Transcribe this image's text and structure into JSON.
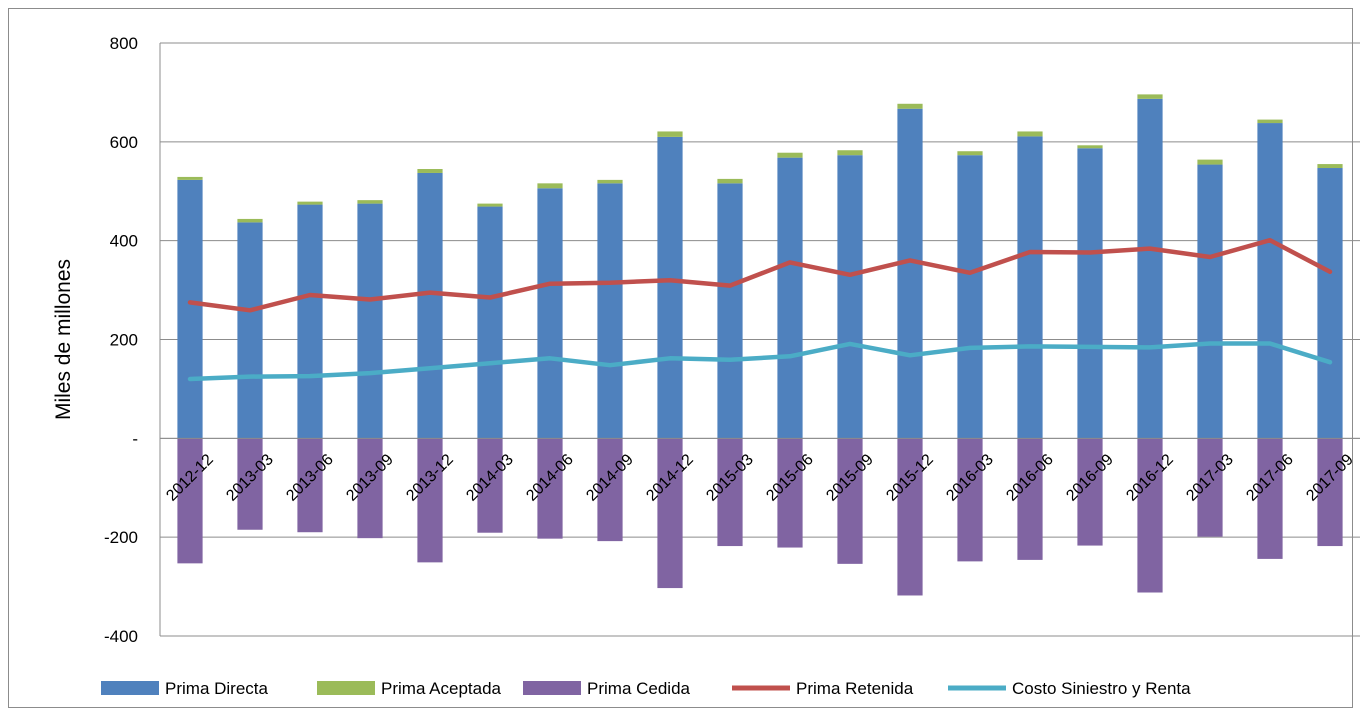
{
  "chart_data": {
    "type": "bar",
    "ylabel": "Miles de millones",
    "ylim": [
      -400,
      800
    ],
    "yticks": [
      {
        "value": 800,
        "label": "800"
      },
      {
        "value": 600,
        "label": "600"
      },
      {
        "value": 400,
        "label": "400"
      },
      {
        "value": 200,
        "label": "200"
      },
      {
        "value": 0,
        "label": "-"
      },
      {
        "value": -200,
        "label": "-200"
      },
      {
        "value": -400,
        "label": "-400"
      }
    ],
    "grid": true,
    "legend_position": "bottom",
    "categories": [
      "2012-12",
      "2013-03",
      "2013-06",
      "2013-09",
      "2013-12",
      "2014-03",
      "2014-06",
      "2014-09",
      "2014-12",
      "2015-03",
      "2015-06",
      "2015-09",
      "2015-12",
      "2016-03",
      "2016-06",
      "2016-09",
      "2016-12",
      "2017-03",
      "2017-06",
      "2017-09"
    ],
    "series": [
      {
        "name": "Prima Directa",
        "kind": "bar",
        "color": "#4F81BD",
        "values": [
          523,
          437,
          473,
          475,
          537,
          469,
          506,
          516,
          610,
          516,
          568,
          573,
          667,
          573,
          611,
          587,
          687,
          554,
          638,
          547
        ]
      },
      {
        "name": "Prima Aceptada",
        "kind": "bar",
        "color": "#9BBB59",
        "values": [
          6,
          7,
          6,
          7,
          8,
          6,
          10,
          7,
          11,
          9,
          10,
          10,
          10,
          8,
          10,
          6,
          9,
          10,
          7,
          8
        ]
      },
      {
        "name": "Prima Cedida",
        "kind": "bar",
        "color": "#8064A2",
        "values": [
          -253,
          -185,
          -190,
          -202,
          -251,
          -191,
          -203,
          -208,
          -303,
          -218,
          -221,
          -254,
          -318,
          -249,
          -246,
          -217,
          -312,
          -199,
          -244,
          -218
        ]
      },
      {
        "name": "Prima Retenida",
        "kind": "line",
        "color": "#C0504D",
        "values": [
          275,
          259,
          290,
          281,
          295,
          285,
          313,
          315,
          320,
          309,
          356,
          331,
          360,
          335,
          377,
          376,
          384,
          367,
          401,
          337
        ]
      },
      {
        "name": "Costo Siniestro y Renta",
        "kind": "line",
        "color": "#4BACC6",
        "values": [
          120,
          125,
          126,
          132,
          142,
          152,
          162,
          148,
          162,
          159,
          166,
          191,
          168,
          183,
          186,
          185,
          184,
          192,
          192,
          154
        ]
      }
    ]
  }
}
